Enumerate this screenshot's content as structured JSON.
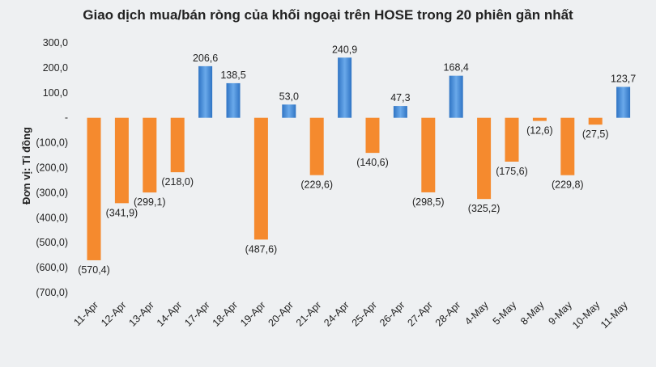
{
  "chart_data": {
    "type": "bar",
    "title": "Giao dịch mua/bán ròng của khối ngoại trên HOSE trong 20 phiên gần nhất",
    "xlabel": "",
    "ylabel": "Đơn vị: Tỉ đồng",
    "ylim": [
      -700,
      300
    ],
    "y_ticks": [
      300,
      200,
      100,
      0,
      -100,
      -200,
      -300,
      -400,
      -500,
      -600,
      -700
    ],
    "y_tick_labels": [
      "300,0",
      "200,0",
      "100,0",
      "-",
      "(100,0)",
      "(200,0)",
      "(300,0)",
      "(400,0)",
      "(500,0)",
      "(600,0)",
      "(700,0)"
    ],
    "grid": false,
    "legend": "none",
    "colors": {
      "positive": "#4a8fd8",
      "negative": "#f58a2e"
    },
    "categories": [
      "11-Apr",
      "12-Apr",
      "13-Apr",
      "14-Apr",
      "17-Apr",
      "18-Apr",
      "19-Apr",
      "20-Apr",
      "21-Apr",
      "24-Apr",
      "25-Apr",
      "26-Apr",
      "27-Apr",
      "28-Apr",
      "4-May",
      "5-May",
      "8-May",
      "9-May",
      "10-May",
      "11-May"
    ],
    "values": [
      -570.4,
      -341.9,
      -299.1,
      -218.0,
      206.6,
      138.5,
      -487.6,
      53.0,
      -229.6,
      240.9,
      -140.6,
      47.3,
      -298.5,
      168.4,
      -325.2,
      -175.6,
      -12.6,
      -229.8,
      -27.5,
      123.7
    ],
    "data_labels": [
      "(570,4)",
      "(341,9)",
      "(299,1)",
      "(218,0)",
      "206,6",
      "138,5",
      "(487,6)",
      "53,0",
      "(229,6)",
      "240,9",
      "(140,6)",
      "47,3",
      "(298,5)",
      "168,4",
      "(325,2)",
      "(175,6)",
      "(12,6)",
      "(229,8)",
      "(27,5)",
      "123,7"
    ]
  }
}
